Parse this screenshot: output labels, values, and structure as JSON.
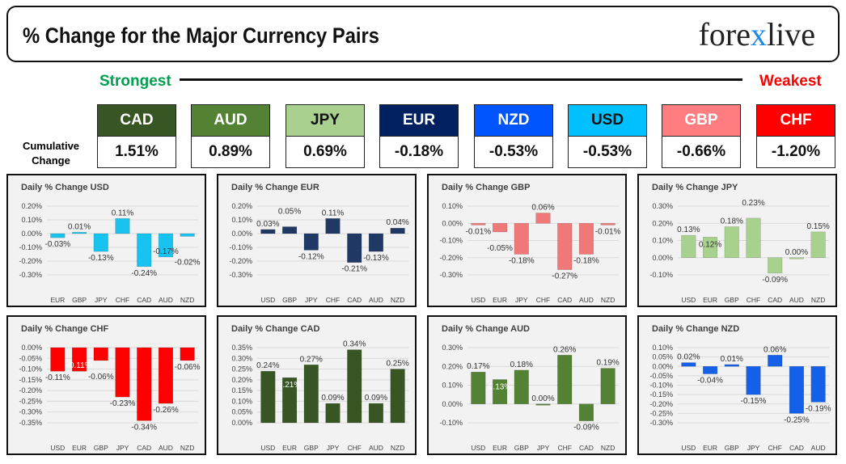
{
  "header": {
    "title": "% Change for the Major Currency Pairs",
    "logo": "forexlive"
  },
  "strongest": "Strongest",
  "weakest": "Weakest",
  "cumulative_label": "Cumulative Change",
  "currencies": [
    {
      "code": "CAD",
      "value": "1.51%",
      "bg": "#375623",
      "fg": "#ffffff"
    },
    {
      "code": "AUD",
      "value": "0.89%",
      "bg": "#548235",
      "fg": "#ffffff"
    },
    {
      "code": "JPY",
      "value": "0.69%",
      "bg": "#a9d08e",
      "fg": "#111111"
    },
    {
      "code": "EUR",
      "value": "-0.18%",
      "bg": "#002060",
      "fg": "#ffffff"
    },
    {
      "code": "NZD",
      "value": "-0.53%",
      "bg": "#0055ff",
      "fg": "#ffffff"
    },
    {
      "code": "USD",
      "value": "-0.53%",
      "bg": "#00c0ff",
      "fg": "#111111"
    },
    {
      "code": "GBP",
      "value": "-0.66%",
      "bg": "#ff7c80",
      "fg": "#ffffff"
    },
    {
      "code": "CHF",
      "value": "-1.20%",
      "bg": "#ff0000",
      "fg": "#ffffff"
    }
  ],
  "chart_data": [
    {
      "type": "bar",
      "title": "Daily % Change USD",
      "color": "#19c3ef",
      "categories": [
        "EUR",
        "GBP",
        "JPY",
        "CHF",
        "CAD",
        "AUD",
        "NZD"
      ],
      "values": [
        -0.03,
        0.01,
        -0.13,
        0.11,
        -0.24,
        -0.17,
        -0.02
      ],
      "ylim": [
        -0.3,
        0.2
      ],
      "ystep": 0.1
    },
    {
      "type": "bar",
      "title": "Daily % Change EUR",
      "color": "#1f3864",
      "categories": [
        "USD",
        "GBP",
        "JPY",
        "CHF",
        "CAD",
        "AUD",
        "NZD"
      ],
      "values": [
        0.03,
        0.05,
        -0.12,
        0.11,
        -0.21,
        -0.13,
        0.04
      ],
      "ylim": [
        -0.3,
        0.2
      ],
      "ystep": 0.1
    },
    {
      "type": "bar",
      "title": "Daily % Change GBP",
      "color": "#f07878",
      "categories": [
        "USD",
        "EUR",
        "JPY",
        "CHF",
        "CAD",
        "AUD",
        "NZD"
      ],
      "values": [
        -0.01,
        -0.05,
        -0.18,
        0.06,
        -0.27,
        -0.18,
        -0.01
      ],
      "ylim": [
        -0.3,
        0.1
      ],
      "ystep": 0.1
    },
    {
      "type": "bar",
      "title": "Daily % Change JPY",
      "color": "#a9d18e",
      "categories": [
        "USD",
        "EUR",
        "GBP",
        "CHF",
        "CAD",
        "AUD",
        "NZD"
      ],
      "values": [
        0.13,
        0.12,
        0.18,
        0.23,
        -0.09,
        0.0,
        0.15
      ],
      "ylim": [
        -0.1,
        0.3
      ],
      "ystep": 0.1
    },
    {
      "type": "bar",
      "title": "Daily % Change CHF",
      "color": "#ff0000",
      "categories": [
        "USD",
        "EUR",
        "GBP",
        "JPY",
        "CAD",
        "AUD",
        "NZD"
      ],
      "values": [
        -0.11,
        -0.11,
        -0.06,
        -0.23,
        -0.34,
        -0.26,
        -0.06
      ],
      "ylim": [
        -0.35,
        0.0
      ],
      "ystep": 0.05
    },
    {
      "type": "bar",
      "title": "Daily % Change CAD",
      "color": "#375623",
      "categories": [
        "USD",
        "EUR",
        "GBP",
        "JPY",
        "CHF",
        "AUD",
        "NZD"
      ],
      "values": [
        0.24,
        0.21,
        0.27,
        0.09,
        0.34,
        0.09,
        0.25
      ],
      "ylim": [
        0.0,
        0.35
      ],
      "ystep": 0.05
    },
    {
      "type": "bar",
      "title": "Daily % Change AUD",
      "color": "#548235",
      "categories": [
        "USD",
        "EUR",
        "GBP",
        "JPY",
        "CHF",
        "CAD",
        "NZD"
      ],
      "values": [
        0.17,
        0.13,
        0.18,
        0.0,
        0.26,
        -0.09,
        0.19
      ],
      "ylim": [
        -0.1,
        0.3
      ],
      "ystep": 0.1
    },
    {
      "type": "bar",
      "title": "Daily % Change NZD",
      "color": "#1560e8",
      "categories": [
        "USD",
        "EUR",
        "GBP",
        "JPY",
        "CHF",
        "CAD",
        "AUD"
      ],
      "values": [
        0.02,
        -0.04,
        0.01,
        -0.15,
        0.06,
        -0.25,
        -0.19
      ],
      "ylim": [
        -0.3,
        0.1
      ],
      "ystep": 0.05
    }
  ]
}
